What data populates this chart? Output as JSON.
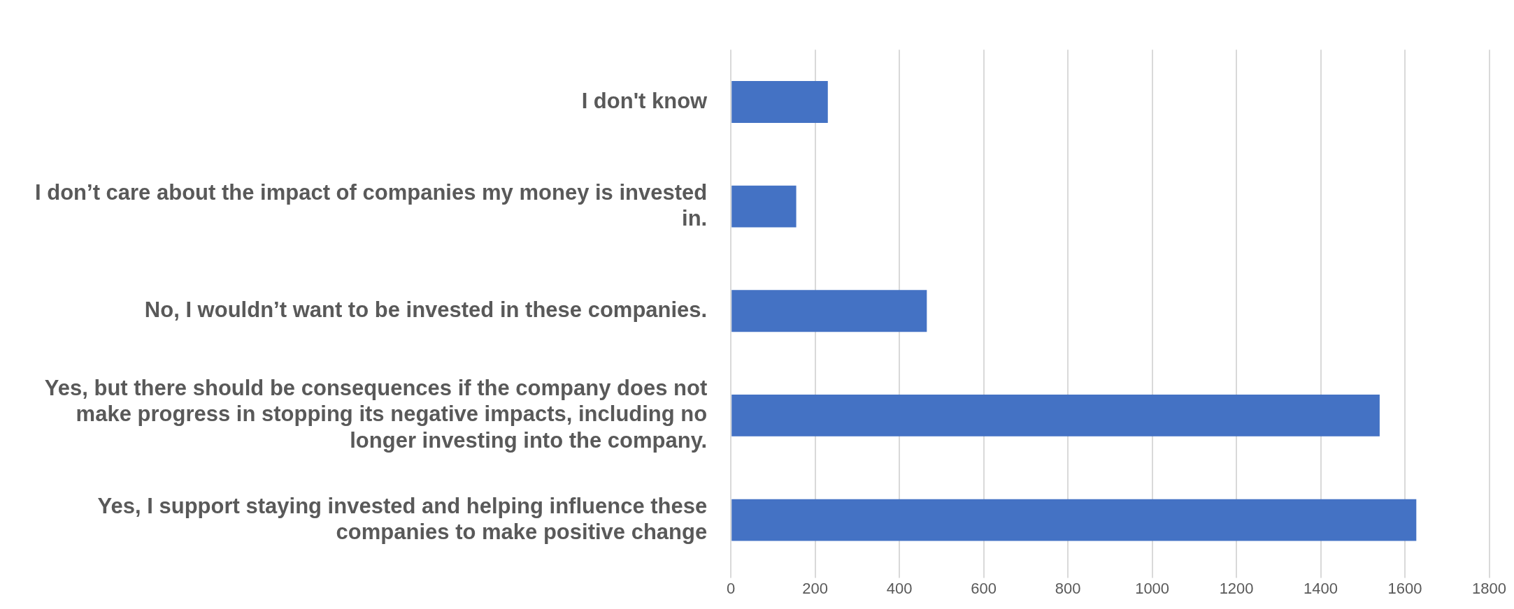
{
  "chart_data": {
    "type": "bar",
    "orientation": "horizontal",
    "categories": [
      "I don't know",
      "I don’t care about the impact of companies my money is invested in.",
      "No, I wouldn’t want to be invested in these companies.",
      "Yes, but there should be consequences if the company does not make progress in stopping its negative impacts, including no longer investing into the company.",
      "Yes, I support staying invested and helping influence these companies to make positive change"
    ],
    "values": [
      230,
      155,
      465,
      1540,
      1627
    ],
    "color": "#4472c4",
    "xlim": [
      0,
      1800
    ],
    "xticks": [
      0,
      200,
      400,
      600,
      800,
      1000,
      1200,
      1400,
      1600,
      1800
    ],
    "grid": "x"
  }
}
